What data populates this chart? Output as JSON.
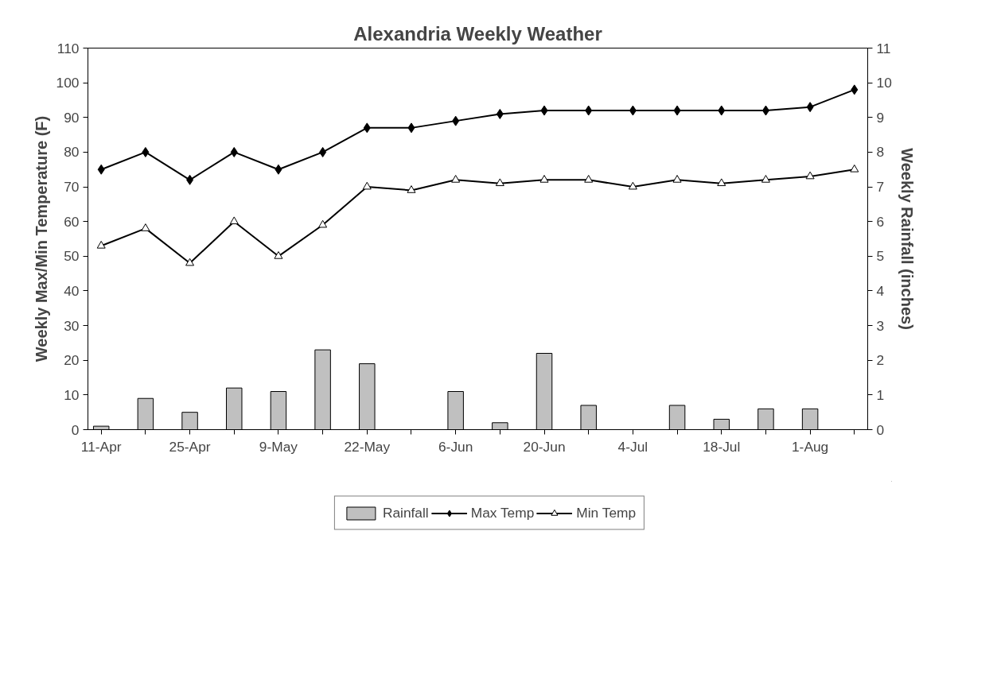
{
  "chart_data": {
    "type": "line",
    "title": "Alexandria Weekly Weather",
    "ylabel": "Weekly Max/Min Temperature (F)",
    "y2label": "Weekly Rainfall (inches)",
    "categories": [
      "11-Apr",
      null,
      "25-Apr",
      null,
      "9-May",
      null,
      "22-May",
      null,
      "6-Jun",
      null,
      "20-Jun",
      null,
      "4-Jul",
      null,
      "18-Jul",
      null,
      "1-Aug",
      null
    ],
    "series": [
      {
        "name": "Rainfall",
        "type": "bar",
        "axis": "y2",
        "color": "#c0c0c0",
        "values": [
          0.1,
          0.9,
          0.5,
          1.2,
          1.1,
          2.3,
          1.9,
          null,
          1.1,
          0.2,
          2.2,
          0.7,
          null,
          0.7,
          0.3,
          0.6,
          0.6,
          null
        ]
      },
      {
        "name": "Max Temp",
        "color": "#000000",
        "marker": "diamond",
        "values": [
          75,
          80,
          72,
          80,
          75,
          80,
          87,
          87,
          89,
          91,
          92,
          92,
          92,
          92,
          92,
          92,
          93,
          98
        ]
      },
      {
        "name": "Min Temp",
        "color": "#000000",
        "marker": "triangle",
        "values": [
          53,
          58,
          48,
          60,
          50,
          59,
          70,
          69,
          72,
          71,
          72,
          72,
          70,
          72,
          71,
          72,
          73,
          75
        ]
      }
    ],
    "ylim": [
      0,
      110
    ],
    "yticks": [
      0,
      10,
      20,
      30,
      40,
      50,
      60,
      70,
      80,
      90,
      100,
      110
    ],
    "y2lim": [
      0,
      11
    ],
    "y2ticks": [
      0,
      1,
      2,
      3,
      4,
      5,
      6,
      7,
      8,
      9,
      10,
      11
    ],
    "grid": false,
    "legend": "bottom"
  }
}
